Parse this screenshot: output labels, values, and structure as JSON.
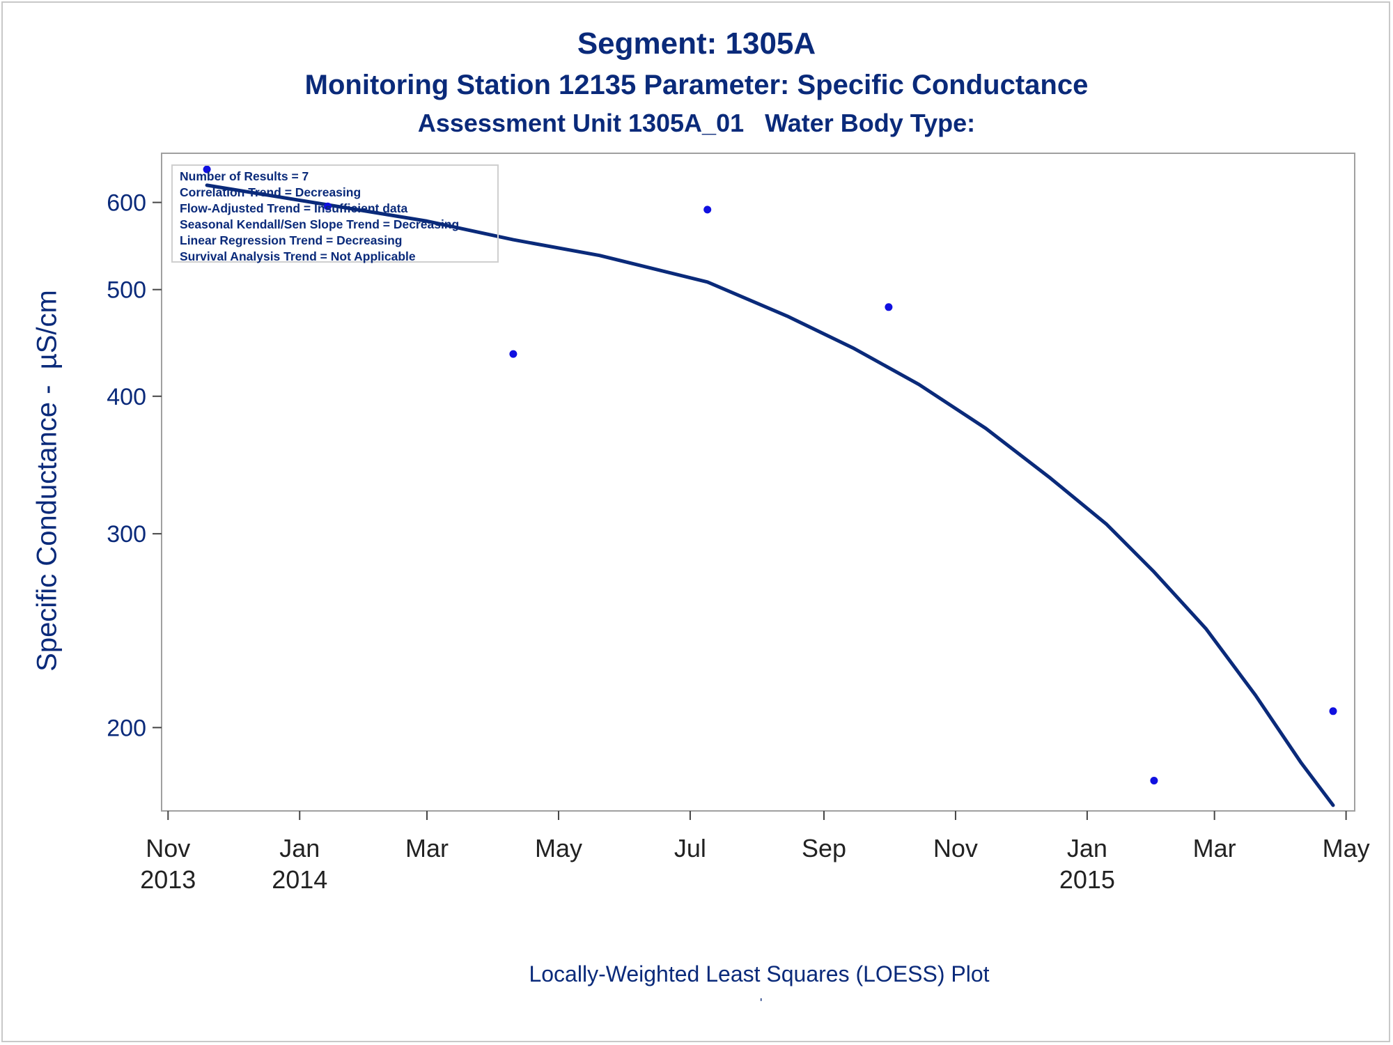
{
  "chart_data": {
    "type": "scatter",
    "title": "Segment: 1305A",
    "subtitle_lines": [
      "Monitoring Station 12135 Parameter: Specific Conductance",
      "Assessment Unit 1305A_01   Water Body Type:"
    ],
    "ylabel": "Specific Conductance -  µS/cm",
    "footnote": "Locally-Weighted Least Squares (LOESS) Plot",
    "footnote_mark": "'",
    "y_scale": "log",
    "ylim": [
      168,
      665
    ],
    "xlim": [
      "2013-10-29",
      "2015-05-05"
    ],
    "y_ticks": [
      {
        "value": 200,
        "label": "200"
      },
      {
        "value": 300,
        "label": "300"
      },
      {
        "value": 400,
        "label": "400"
      },
      {
        "value": 500,
        "label": "500"
      },
      {
        "value": 600,
        "label": "600"
      }
    ],
    "x_ticks": [
      {
        "date": "2013-11-01",
        "line1": "Nov",
        "line2": "2013"
      },
      {
        "date": "2014-01-01",
        "line1": "Jan",
        "line2": "2014"
      },
      {
        "date": "2014-03-01",
        "line1": "Mar",
        "line2": ""
      },
      {
        "date": "2014-05-01",
        "line1": "May",
        "line2": ""
      },
      {
        "date": "2014-07-01",
        "line1": "Jul",
        "line2": ""
      },
      {
        "date": "2014-09-01",
        "line1": "Sep",
        "line2": ""
      },
      {
        "date": "2014-11-01",
        "line1": "Nov",
        "line2": ""
      },
      {
        "date": "2015-01-01",
        "line1": "Jan",
        "line2": "2015"
      },
      {
        "date": "2015-03-01",
        "line1": "Mar",
        "line2": ""
      },
      {
        "date": "2015-05-01",
        "line1": "May",
        "line2": ""
      }
    ],
    "points": [
      {
        "x": "2013-11-19",
        "y": 643
      },
      {
        "x": "2014-01-14",
        "y": 595
      },
      {
        "x": "2014-04-10",
        "y": 437
      },
      {
        "x": "2014-07-09",
        "y": 591
      },
      {
        "x": "2014-10-01",
        "y": 482
      },
      {
        "x": "2015-02-01",
        "y": 179
      },
      {
        "x": "2015-04-25",
        "y": 207
      }
    ],
    "loess_curve": [
      {
        "x": "2013-11-19",
        "y": 622
      },
      {
        "x": "2014-01-14",
        "y": 597
      },
      {
        "x": "2014-03-01",
        "y": 577
      },
      {
        "x": "2014-04-10",
        "y": 555
      },
      {
        "x": "2014-05-20",
        "y": 537
      },
      {
        "x": "2014-07-09",
        "y": 508
      },
      {
        "x": "2014-08-15",
        "y": 473
      },
      {
        "x": "2014-09-15",
        "y": 442
      },
      {
        "x": "2014-10-15",
        "y": 410
      },
      {
        "x": "2014-11-15",
        "y": 374
      },
      {
        "x": "2014-12-15",
        "y": 337
      },
      {
        "x": "2015-01-10",
        "y": 306
      },
      {
        "x": "2015-02-01",
        "y": 277
      },
      {
        "x": "2015-02-25",
        "y": 246
      },
      {
        "x": "2015-03-20",
        "y": 214
      },
      {
        "x": "2015-04-10",
        "y": 186
      },
      {
        "x": "2015-04-25",
        "y": 170
      }
    ],
    "grid": false,
    "legend_placement": "none",
    "colors": {
      "points": "#1010e0",
      "curve": "#0a2a7a",
      "text": "#0a2a7a"
    }
  },
  "info_box": {
    "placement": "top-left",
    "lines": [
      "Number of Results = 7",
      "Correlation Trend = Decreasing",
      "Flow-Adjusted Trend = Insufficient data",
      "Seasonal Kendall/Sen Slope Trend = Decreasing",
      "Linear Regression Trend = Decreasing",
      "Survival Analysis Trend = Not Applicable"
    ]
  }
}
